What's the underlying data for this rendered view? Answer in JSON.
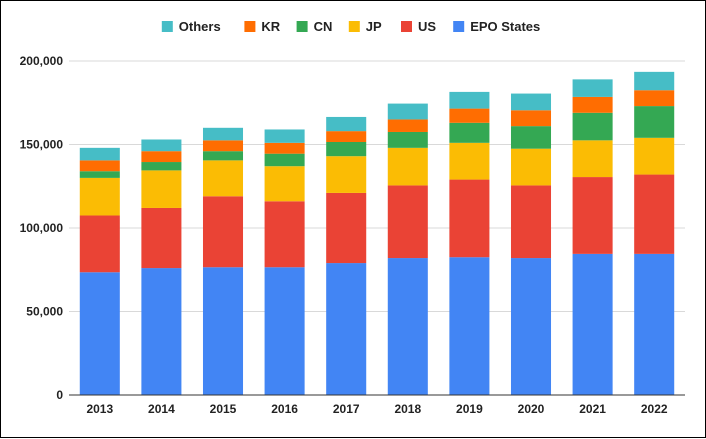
{
  "chart_data": {
    "type": "bar",
    "stacked": true,
    "title": "",
    "xlabel": "",
    "ylabel": "",
    "ylim": [
      0,
      200000
    ],
    "yticks": [
      0,
      50000,
      100000,
      150000,
      200000
    ],
    "ytick_labels": [
      "0",
      "50,000",
      "100,000",
      "150,000",
      "200,000"
    ],
    "grid": true,
    "legend_position": "top",
    "categories": [
      "2013",
      "2014",
      "2015",
      "2016",
      "2017",
      "2018",
      "2019",
      "2020",
      "2021",
      "2022"
    ],
    "series": [
      {
        "name": "EPO States",
        "color": "#4285f4",
        "values": [
          73500,
          76000,
          76500,
          76500,
          79000,
          82000,
          82500,
          82000,
          84500,
          84500
        ]
      },
      {
        "name": "US",
        "color": "#ea4335",
        "values": [
          34000,
          36000,
          42500,
          39500,
          42000,
          43500,
          46500,
          43500,
          46000,
          47500
        ]
      },
      {
        "name": "JP",
        "color": "#fbbc04",
        "values": [
          22500,
          22500,
          21500,
          21000,
          22000,
          22500,
          22000,
          22000,
          22000,
          22000
        ]
      },
      {
        "name": "CN",
        "color": "#34a853",
        "values": [
          4000,
          5000,
          5500,
          7500,
          8500,
          9500,
          12000,
          13500,
          16500,
          19000
        ]
      },
      {
        "name": "KR",
        "color": "#ff6d01",
        "values": [
          6500,
          6500,
          6500,
          6500,
          6500,
          7500,
          8500,
          9500,
          9500,
          9500
        ]
      },
      {
        "name": "Others",
        "color": "#46bdc6",
        "values": [
          7500,
          7000,
          7500,
          8000,
          8500,
          9500,
          10000,
          10000,
          10500,
          11000
        ]
      }
    ],
    "legend_order": [
      "Others",
      "KR",
      "CN",
      "JP",
      "US",
      "EPO States"
    ]
  }
}
